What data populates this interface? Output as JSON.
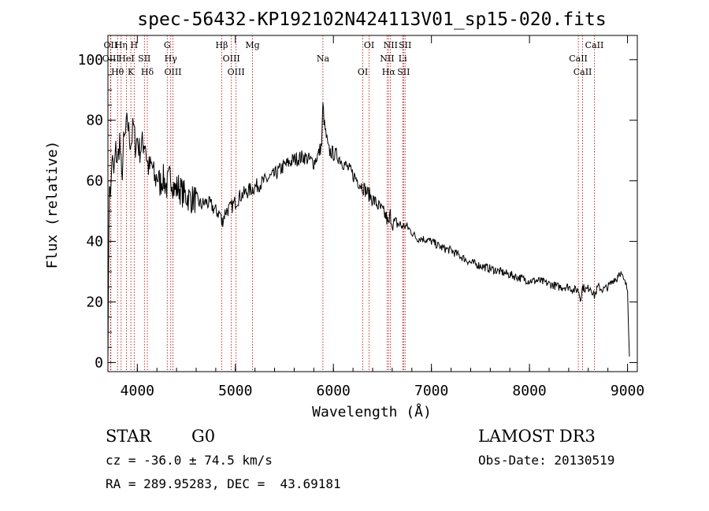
{
  "chart_data": {
    "type": "line",
    "title": "spec-56432-KP192102N424113V01_sp15-020.fits",
    "xlabel": "Wavelength (Å)",
    "ylabel": "Flux (relative)",
    "xlim": [
      3700,
      9100
    ],
    "ylim": [
      -3,
      108
    ],
    "x_ticks": [
      4000,
      5000,
      6000,
      7000,
      8000,
      9000
    ],
    "y_ticks": [
      0,
      20,
      40,
      60,
      80,
      100
    ],
    "grid": false,
    "series": [
      {
        "x": [
          3700,
          3710,
          3720,
          3730,
          3740,
          3760,
          3780,
          3800,
          3820,
          3840,
          3860,
          3880,
          3900,
          3920,
          3940,
          3960,
          3980,
          4000,
          4020,
          4050,
          4080,
          4100,
          4120,
          4150,
          4180,
          4200,
          4230,
          4260,
          4300,
          4340,
          4380,
          4420,
          4460,
          4500,
          4550,
          4600,
          4650,
          4700,
          4750,
          4800,
          4850,
          4860,
          4900,
          4950,
          5000,
          5050,
          5100,
          5200,
          5300,
          5400,
          5500,
          5600,
          5700,
          5750,
          5800,
          5850,
          5880,
          5893,
          5910,
          5950,
          6000,
          6050,
          6100,
          6150,
          6200,
          6250,
          6300,
          6350,
          6400,
          6450,
          6500,
          6540,
          6563,
          6580,
          6600,
          6650,
          6700,
          6750,
          6800,
          6850,
          6900,
          7000,
          7100,
          7200,
          7300,
          7400,
          7500,
          7600,
          7700,
          7800,
          7900,
          8000,
          8100,
          8200,
          8300,
          8400,
          8450,
          8498,
          8520,
          8542,
          8580,
          8620,
          8662,
          8700,
          8750,
          8800,
          8830,
          8850,
          8870,
          8890,
          8900,
          8920,
          8940,
          8960,
          8980,
          9000,
          9020
        ],
        "y": [
          0,
          48,
          60,
          55,
          68,
          62,
          70,
          66,
          74,
          60,
          72,
          75,
          80,
          74,
          73,
          78,
          72,
          74,
          70,
          72,
          73,
          66,
          64,
          65,
          60,
          62,
          59,
          61,
          58,
          62,
          57,
          58,
          56,
          55,
          54,
          54,
          52,
          53,
          52,
          50,
          49,
          46,
          50,
          51,
          53,
          55,
          56,
          58,
          60,
          62,
          65,
          67,
          68,
          67,
          66,
          69,
          72,
          85,
          78,
          70,
          69,
          68,
          66,
          64,
          62,
          60,
          58,
          56,
          54,
          52,
          50,
          48,
          45,
          49,
          46,
          46,
          45,
          45,
          43,
          41,
          41,
          40,
          38,
          37,
          35,
          33,
          32,
          31,
          30,
          29,
          28,
          27,
          27,
          26,
          25,
          25,
          24,
          24,
          21,
          25,
          24,
          25,
          22,
          25,
          24,
          25,
          26,
          27,
          28,
          27,
          29,
          30,
          29,
          27,
          26,
          24,
          2
        ]
      }
    ],
    "line_marks": [
      {
        "label": "OII",
        "x": 3727
      },
      {
        "label": "OIII",
        "x": 3730
      },
      {
        "label": "Hθ",
        "x": 3798
      },
      {
        "label": "Hη",
        "x": 3835
      },
      {
        "label": "HeI",
        "x": 3889
      },
      {
        "label": "K",
        "x": 3934
      },
      {
        "label": "H",
        "x": 3968
      },
      {
        "label": "SII",
        "x": 4072
      },
      {
        "label": "Hδ",
        "x": 4102
      },
      {
        "label": "G",
        "x": 4305
      },
      {
        "label": "Hγ",
        "x": 4341
      },
      {
        "label": "OIII",
        "x": 4363
      },
      {
        "label": "Hβ",
        "x": 4861
      },
      {
        "label": "OIII",
        "x": 4959
      },
      {
        "label": "OIII",
        "x": 5007
      },
      {
        "label": "Mg",
        "x": 5175
      },
      {
        "label": "Na",
        "x": 5893
      },
      {
        "label": "OI",
        "x": 6300
      },
      {
        "label": "OI",
        "x": 6364
      },
      {
        "label": "NII",
        "x": 6548
      },
      {
        "label": "Hα",
        "x": 6563
      },
      {
        "label": "NII",
        "x": 6583
      },
      {
        "label": "Li",
        "x": 6707
      },
      {
        "label": "SII",
        "x": 6716
      },
      {
        "label": "SII",
        "x": 6731
      },
      {
        "label": "CaII",
        "x": 8498
      },
      {
        "label": "CaII",
        "x": 8542
      },
      {
        "label": "CaII",
        "x": 8662
      }
    ]
  },
  "info": {
    "class_label": "STAR",
    "subclass_label": "G0",
    "survey": "LAMOST DR3",
    "redshift_text": "cz = -36.0 ± 74.5 km/s",
    "obs_date_text": "Obs-Date: 20130519",
    "coords_text": "RA = 289.95283, DEC =  43.69181"
  }
}
